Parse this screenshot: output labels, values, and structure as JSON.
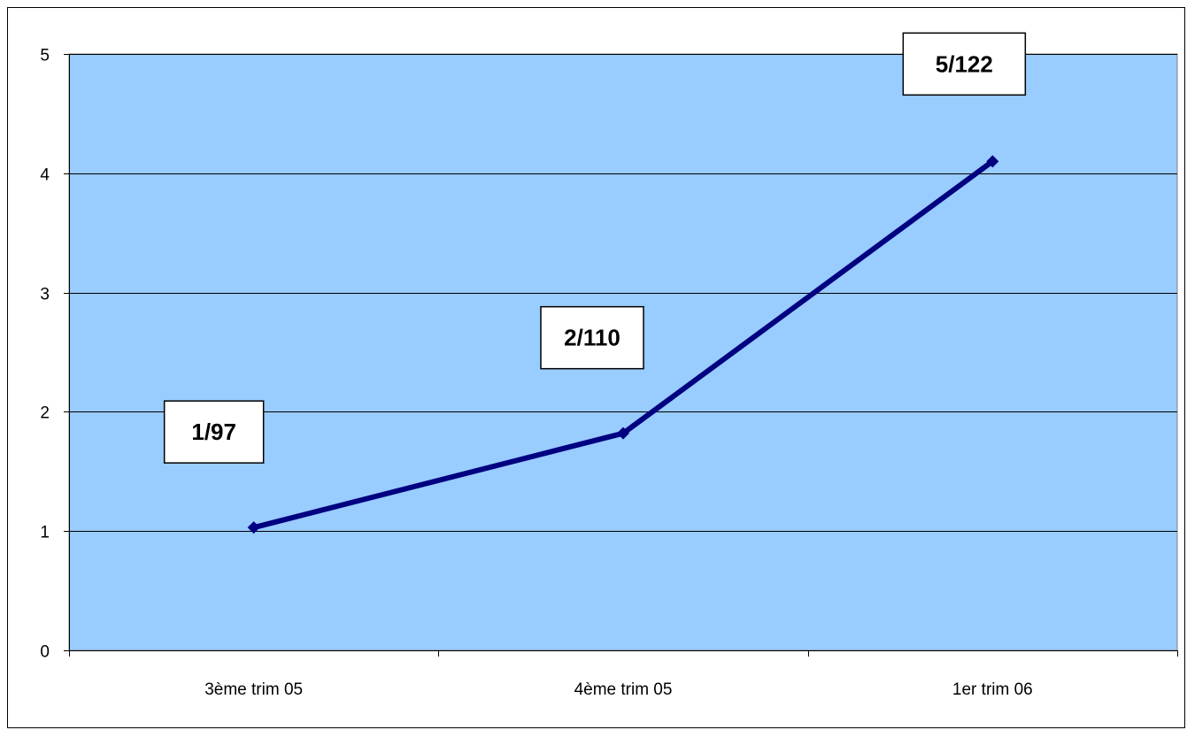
{
  "chart_data": {
    "type": "line",
    "title": "",
    "xlabel": "",
    "ylabel": "",
    "categories": [
      "3ème trim 05",
      "4ème trim 05",
      "1er trim 06"
    ],
    "series": [
      {
        "values": [
          1.03,
          1.82,
          4.1
        ],
        "data_labels": [
          "1/97",
          "2/110",
          "5/122"
        ]
      }
    ],
    "ylim": [
      0,
      5
    ],
    "yticks": [
      "0",
      "1",
      "2",
      "3",
      "4",
      "5"
    ],
    "grid": true,
    "colors": {
      "plot_background": "#99ccff",
      "line": "#000080",
      "gridline": "#000000"
    }
  }
}
